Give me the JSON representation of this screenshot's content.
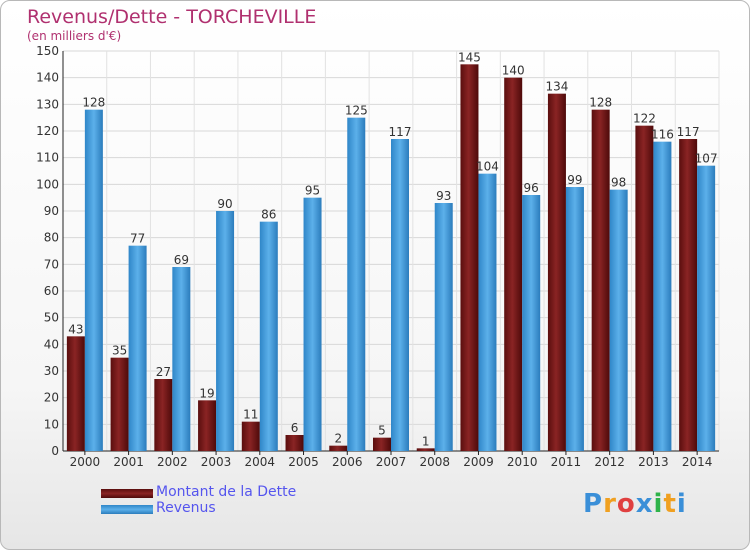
{
  "chart_data": {
    "type": "bar",
    "title": "Revenus/Dette - TORCHEVILLE",
    "subtitle": "(en milliers d'€)",
    "categories": [
      "2000",
      "2001",
      "2002",
      "2003",
      "2004",
      "2005",
      "2006",
      "2007",
      "2008",
      "2009",
      "2010",
      "2011",
      "2012",
      "2013",
      "2014"
    ],
    "series": [
      {
        "name": "Montant de la Dette",
        "color": "#7a1a1a",
        "values": [
          43,
          35,
          27,
          19,
          11,
          6,
          2,
          5,
          1,
          145,
          140,
          134,
          128,
          122,
          117
        ]
      },
      {
        "name": "Revenus",
        "color": "#4ba3e3",
        "values": [
          128,
          77,
          69,
          90,
          86,
          95,
          125,
          117,
          93,
          104,
          96,
          99,
          98,
          116,
          107
        ]
      }
    ],
    "ylim": [
      0,
      150
    ],
    "yticks": [
      0,
      10,
      20,
      30,
      40,
      50,
      60,
      70,
      80,
      90,
      100,
      110,
      120,
      130,
      140,
      150
    ],
    "grid": true,
    "legend_position": "bottom-left"
  },
  "brand": {
    "text": "Proxiti",
    "letter_colors": [
      "#3a8fd8",
      "#f0a020",
      "#e04040",
      "#3a8fd8",
      "#2fb34a",
      "#f0a020",
      "#3a8fd8"
    ]
  }
}
